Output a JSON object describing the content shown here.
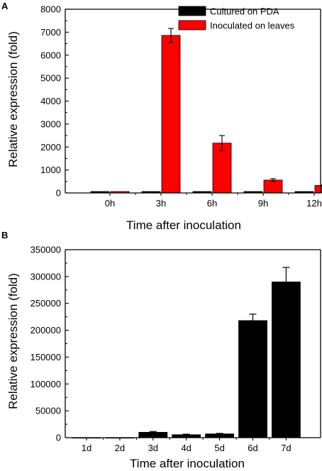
{
  "colors": {
    "cultured": "#000000",
    "inoculated": "#ff0000",
    "axis": "#000000"
  },
  "chart_data": [
    {
      "panel": "A",
      "type": "bar",
      "xlabel": "Time after inoculation",
      "ylabel": "Relative expression (fold)",
      "categories": [
        "0h",
        "3h",
        "6h",
        "9h",
        "12h"
      ],
      "ylim": [
        0,
        8000
      ],
      "yticks": [
        0,
        1000,
        2000,
        3000,
        4000,
        5000,
        6000,
        7000,
        8000
      ],
      "series": [
        {
          "name": "Cultured on PDA",
          "color": "#000000",
          "values": [
            1,
            1,
            1,
            1,
            1
          ],
          "errors": [
            0,
            0,
            0,
            0,
            0
          ]
        },
        {
          "name": "Inoculated on leaves",
          "color": "#ff0000",
          "values": [
            1,
            6860,
            2170,
            560,
            330
          ],
          "errors": [
            0,
            300,
            330,
            60,
            30
          ]
        }
      ],
      "legend": "top-right",
      "grid": false
    },
    {
      "panel": "B",
      "type": "bar",
      "xlabel": "Time after inoculation",
      "ylabel": "Relative expression (fold)",
      "categories": [
        "1d",
        "2d",
        "3d",
        "4d",
        "5d",
        "6d",
        "7d"
      ],
      "ylim": [
        0,
        350000
      ],
      "yticks": [
        0,
        50000,
        100000,
        150000,
        200000,
        250000,
        300000,
        350000
      ],
      "series": [
        {
          "name": "",
          "color": "#000000",
          "values": [
            100,
            100,
            10000,
            5500,
            7000,
            218000,
            290000
          ],
          "errors": [
            0,
            0,
            1500,
            1000,
            1000,
            12000,
            27000
          ]
        }
      ],
      "grid": false
    }
  ]
}
